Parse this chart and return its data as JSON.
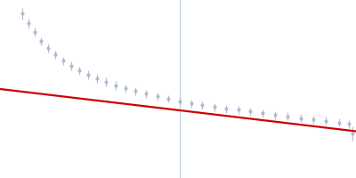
{
  "background_color": "#ffffff",
  "data_color": "#a8b8d0",
  "data_alpha": 0.9,
  "fit_color": "#cc0000",
  "fit_alpha": 1.0,
  "vline_color": "#b0cfe0",
  "vline_alpha": 0.8,
  "marker_size": 3.0,
  "capsize": 2.0,
  "elinewidth": 0.8,
  "fit_linewidth": 1.6,
  "vline_lw": 0.9,
  "xlim": [
    0.0,
    0.0095
  ],
  "ylim": [
    3.2,
    7.2
  ],
  "vline_x": 0.0048,
  "fit_x0": 0.0,
  "fit_x1": 0.0095,
  "fit_y0": 5.2,
  "fit_y1": 4.25,
  "data_points": [
    [
      0.0006,
      6.9,
      0.13
    ],
    [
      0.00075,
      6.68,
      0.11
    ],
    [
      0.00092,
      6.48,
      0.1
    ],
    [
      0.0011,
      6.28,
      0.09
    ],
    [
      0.00128,
      6.12,
      0.1
    ],
    [
      0.00148,
      5.98,
      0.09
    ],
    [
      0.00168,
      5.84,
      0.09
    ],
    [
      0.0019,
      5.72,
      0.1
    ],
    [
      0.00212,
      5.62,
      0.09
    ],
    [
      0.00235,
      5.52,
      0.1
    ],
    [
      0.00258,
      5.44,
      0.1
    ],
    [
      0.00282,
      5.36,
      0.1
    ],
    [
      0.00308,
      5.29,
      0.1
    ],
    [
      0.00335,
      5.22,
      0.09
    ],
    [
      0.00362,
      5.16,
      0.09
    ],
    [
      0.0039,
      5.1,
      0.09
    ],
    [
      0.0042,
      5.04,
      0.09
    ],
    [
      0.0045,
      4.98,
      0.09
    ],
    [
      0.0048,
      4.93,
      0.09
    ],
    [
      0.0051,
      4.88,
      0.09
    ],
    [
      0.0054,
      4.84,
      0.09
    ],
    [
      0.00572,
      4.8,
      0.09
    ],
    [
      0.00604,
      4.76,
      0.09
    ],
    [
      0.00636,
      4.73,
      0.09
    ],
    [
      0.00668,
      4.69,
      0.09
    ],
    [
      0.007,
      4.66,
      0.09
    ],
    [
      0.00734,
      4.62,
      0.09
    ],
    [
      0.00768,
      4.59,
      0.09
    ],
    [
      0.00802,
      4.55,
      0.09
    ],
    [
      0.00836,
      4.52,
      0.09
    ],
    [
      0.0087,
      4.49,
      0.09
    ],
    [
      0.00904,
      4.45,
      0.09
    ],
    [
      0.0093,
      4.42,
      0.09
    ],
    [
      0.0094,
      4.2,
      0.16
    ]
  ]
}
